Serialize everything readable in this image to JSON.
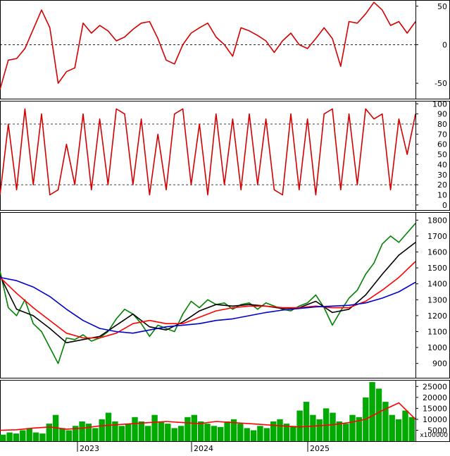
{
  "chart_data": [
    {
      "type": "line",
      "panel": "oscillator-top",
      "y_ticks": [
        50,
        0,
        -50
      ],
      "ylim": [
        -70,
        58
      ],
      "reference_lines": [
        0
      ],
      "series": [
        {
          "color": "#d40000",
          "x": [
            0,
            0.02,
            0.04,
            0.06,
            0.08,
            0.1,
            0.12,
            0.14,
            0.16,
            0.18,
            0.2,
            0.22,
            0.24,
            0.26,
            0.28,
            0.3,
            0.32,
            0.34,
            0.36,
            0.38,
            0.4,
            0.42,
            0.44,
            0.46,
            0.48,
            0.5,
            0.52,
            0.54,
            0.56,
            0.58,
            0.6,
            0.62,
            0.64,
            0.66,
            0.68,
            0.7,
            0.72,
            0.74,
            0.76,
            0.78,
            0.8,
            0.82,
            0.84,
            0.86,
            0.88,
            0.9,
            0.92,
            0.94,
            0.96,
            0.98,
            1.0
          ],
          "values": [
            -58,
            -20,
            -18,
            -5,
            20,
            45,
            22,
            -50,
            -35,
            -30,
            28,
            15,
            25,
            18,
            5,
            10,
            20,
            28,
            30,
            8,
            -20,
            -25,
            0,
            15,
            22,
            28,
            10,
            0,
            -15,
            22,
            18,
            12,
            5,
            -10,
            5,
            15,
            0,
            -5,
            8,
            22,
            8,
            -28,
            30,
            28,
            40,
            55,
            45,
            25,
            30,
            15,
            30
          ]
        }
      ]
    },
    {
      "type": "line",
      "panel": "oscillator-middle",
      "y_ticks": [
        100,
        90,
        80,
        70,
        60,
        50,
        40,
        30,
        20,
        10,
        0
      ],
      "ylim": [
        -5,
        103
      ],
      "reference_lines": [
        80,
        20
      ],
      "series": [
        {
          "color": "#d40000",
          "x": [
            0,
            0.02,
            0.04,
            0.06,
            0.08,
            0.1,
            0.12,
            0.14,
            0.16,
            0.18,
            0.2,
            0.22,
            0.24,
            0.26,
            0.28,
            0.3,
            0.32,
            0.34,
            0.36,
            0.38,
            0.4,
            0.42,
            0.44,
            0.46,
            0.48,
            0.5,
            0.52,
            0.54,
            0.56,
            0.58,
            0.6,
            0.62,
            0.64,
            0.66,
            0.68,
            0.7,
            0.72,
            0.74,
            0.76,
            0.78,
            0.8,
            0.82,
            0.84,
            0.86,
            0.88,
            0.9,
            0.92,
            0.94,
            0.96,
            0.98,
            1.0
          ],
          "values": [
            10,
            80,
            15,
            95,
            20,
            90,
            10,
            15,
            60,
            20,
            90,
            15,
            85,
            20,
            95,
            90,
            20,
            85,
            10,
            70,
            15,
            90,
            95,
            20,
            80,
            10,
            90,
            20,
            85,
            15,
            90,
            20,
            85,
            15,
            10,
            90,
            15,
            85,
            10,
            90,
            95,
            15,
            90,
            20,
            95,
            85,
            90,
            15,
            85,
            50,
            90
          ]
        }
      ]
    },
    {
      "type": "line",
      "panel": "price",
      "y_ticks": [
        1800,
        1700,
        1600,
        1500,
        1400,
        1300,
        1200,
        1100,
        1000,
        900
      ],
      "ylim": [
        810,
        1850
      ],
      "x_tick_labels": [
        "2023",
        "2024",
        "2025"
      ],
      "series": [
        {
          "color": "#008000",
          "x": [
            0,
            0.02,
            0.04,
            0.06,
            0.08,
            0.1,
            0.12,
            0.14,
            0.16,
            0.18,
            0.2,
            0.22,
            0.24,
            0.26,
            0.28,
            0.3,
            0.32,
            0.34,
            0.36,
            0.38,
            0.4,
            0.42,
            0.44,
            0.46,
            0.48,
            0.5,
            0.52,
            0.54,
            0.56,
            0.58,
            0.6,
            0.62,
            0.64,
            0.66,
            0.68,
            0.7,
            0.72,
            0.74,
            0.76,
            0.78,
            0.8,
            0.82,
            0.84,
            0.86,
            0.88,
            0.9,
            0.92,
            0.94,
            0.96,
            0.98,
            1.0
          ],
          "values": [
            1480,
            1250,
            1200,
            1300,
            1150,
            1100,
            1000,
            900,
            1060,
            1050,
            1080,
            1040,
            1060,
            1100,
            1180,
            1240,
            1210,
            1150,
            1070,
            1140,
            1120,
            1100,
            1210,
            1290,
            1250,
            1300,
            1270,
            1280,
            1240,
            1270,
            1280,
            1240,
            1280,
            1260,
            1240,
            1230,
            1260,
            1280,
            1330,
            1250,
            1140,
            1230,
            1310,
            1360,
            1460,
            1530,
            1650,
            1700,
            1660,
            1720,
            1780
          ]
        },
        {
          "color": "#000000",
          "x": [
            0,
            0.04,
            0.08,
            0.12,
            0.16,
            0.2,
            0.24,
            0.28,
            0.32,
            0.36,
            0.4,
            0.44,
            0.48,
            0.52,
            0.56,
            0.6,
            0.64,
            0.68,
            0.72,
            0.76,
            0.8,
            0.84,
            0.88,
            0.92,
            0.96,
            1.0
          ],
          "values": [
            1450,
            1240,
            1200,
            1120,
            1030,
            1050,
            1070,
            1140,
            1210,
            1130,
            1110,
            1160,
            1230,
            1270,
            1260,
            1270,
            1260,
            1245,
            1250,
            1290,
            1220,
            1240,
            1330,
            1460,
            1580,
            1660
          ]
        },
        {
          "color": "#ff0000",
          "x": [
            0,
            0.04,
            0.08,
            0.12,
            0.16,
            0.2,
            0.24,
            0.28,
            0.32,
            0.36,
            0.4,
            0.44,
            0.48,
            0.52,
            0.56,
            0.6,
            0.64,
            0.68,
            0.72,
            0.76,
            0.8,
            0.84,
            0.88,
            0.92,
            0.96,
            1.0
          ],
          "values": [
            1440,
            1340,
            1250,
            1170,
            1090,
            1060,
            1060,
            1090,
            1150,
            1170,
            1150,
            1150,
            1190,
            1230,
            1250,
            1260,
            1260,
            1250,
            1250,
            1260,
            1250,
            1250,
            1290,
            1360,
            1440,
            1540
          ]
        },
        {
          "color": "#0000cc",
          "x": [
            0,
            0.04,
            0.08,
            0.12,
            0.16,
            0.2,
            0.24,
            0.28,
            0.32,
            0.36,
            0.4,
            0.44,
            0.48,
            0.52,
            0.56,
            0.6,
            0.64,
            0.68,
            0.72,
            0.76,
            0.8,
            0.84,
            0.88,
            0.92,
            0.96,
            1.0
          ],
          "values": [
            1440,
            1420,
            1380,
            1320,
            1240,
            1170,
            1120,
            1100,
            1090,
            1110,
            1130,
            1140,
            1150,
            1170,
            1180,
            1200,
            1220,
            1235,
            1245,
            1255,
            1260,
            1265,
            1280,
            1310,
            1350,
            1410
          ]
        }
      ]
    },
    {
      "type": "bar",
      "panel": "volume",
      "y_ticks": [
        25000,
        20000,
        15000,
        10000,
        5000
      ],
      "ylim": [
        0,
        28000
      ],
      "scale_label": "x100000",
      "bar_color": "#00aa00",
      "bar_values": [
        3000,
        4000,
        3500,
        5000,
        6000,
        4000,
        3500,
        8000,
        12000,
        6000,
        5000,
        7000,
        9000,
        8000,
        6000,
        10000,
        13000,
        9000,
        7000,
        8000,
        11000,
        9000,
        7000,
        12000,
        9000,
        8000,
        6000,
        7000,
        11000,
        12000,
        9000,
        8000,
        7000,
        6500,
        9000,
        10000,
        8000,
        6000,
        5000,
        7000,
        6000,
        9000,
        10000,
        8000,
        7000,
        14000,
        18000,
        12000,
        10000,
        15000,
        13000,
        9000,
        8000,
        12000,
        11000,
        20000,
        27000,
        24000,
        18000,
        12000,
        10000,
        14000,
        11000
      ],
      "ma_color": "#ff0000",
      "ma_x": [
        0,
        0.04,
        0.08,
        0.12,
        0.16,
        0.2,
        0.24,
        0.28,
        0.32,
        0.36,
        0.4,
        0.44,
        0.48,
        0.52,
        0.56,
        0.6,
        0.64,
        0.68,
        0.72,
        0.76,
        0.8,
        0.84,
        0.88,
        0.92,
        0.96,
        1.0
      ],
      "ma_values": [
        5000,
        5200,
        6000,
        6500,
        5500,
        6000,
        7000,
        7500,
        8000,
        8500,
        9000,
        8500,
        8000,
        9000,
        8500,
        8000,
        7500,
        7000,
        6500,
        7000,
        7500,
        8500,
        10000,
        14000,
        17500,
        10000
      ]
    }
  ]
}
